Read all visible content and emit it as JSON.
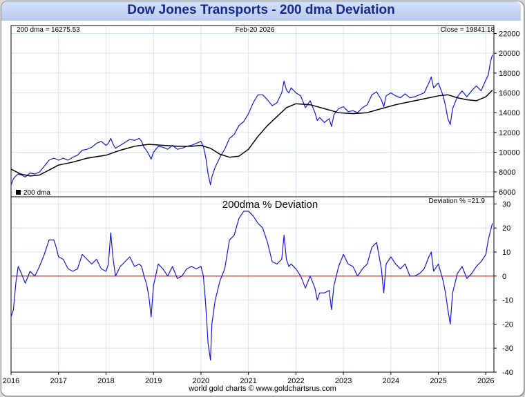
{
  "title": "Dow Jones Transports - 200 dma Deviation",
  "footer": "world gold charts © www.goldchartsrus.com",
  "colors": {
    "price": "#1414e0",
    "dma": "#000000",
    "zero_line": "#e00000",
    "grid": "#d6e2f0"
  },
  "chart_data": [
    {
      "type": "line",
      "panel": "price",
      "header_left": "200 dma =",
      "header_left_value": "16275.53",
      "header_center": "Feb-20  2026",
      "header_right": "Close = 19841.18",
      "legend": "200 dma",
      "ylim": [
        5500,
        22800
      ],
      "yticks": [
        6000,
        8000,
        10000,
        12000,
        14000,
        16000,
        18000,
        20000,
        22000
      ],
      "x_range": [
        2016.0,
        2026.17
      ],
      "series": [
        {
          "name": "Dow Jones Transports",
          "x": [
            2016.0,
            2016.05,
            2016.1,
            2016.15,
            2016.22,
            2016.3,
            2016.4,
            2016.5,
            2016.6,
            2016.7,
            2016.8,
            2016.9,
            2016.95,
            2017.0,
            2017.1,
            2017.2,
            2017.3,
            2017.4,
            2017.5,
            2017.6,
            2017.7,
            2017.8,
            2017.9,
            2018.0,
            2018.05,
            2018.1,
            2018.15,
            2018.2,
            2018.3,
            2018.4,
            2018.5,
            2018.6,
            2018.7,
            2018.75,
            2018.8,
            2018.85,
            2018.9,
            2018.95,
            2019.0,
            2019.1,
            2019.2,
            2019.3,
            2019.4,
            2019.5,
            2019.6,
            2019.7,
            2019.8,
            2019.9,
            2020.0,
            2020.05,
            2020.1,
            2020.15,
            2020.2,
            2020.23,
            2020.3,
            2020.4,
            2020.5,
            2020.6,
            2020.7,
            2020.8,
            2020.9,
            2021.0,
            2021.1,
            2021.2,
            2021.3,
            2021.4,
            2021.5,
            2021.6,
            2021.7,
            2021.75,
            2021.8,
            2021.85,
            2021.9,
            2022.0,
            2022.1,
            2022.2,
            2022.3,
            2022.4,
            2022.45,
            2022.5,
            2022.6,
            2022.7,
            2022.75,
            2022.8,
            2022.9,
            2023.0,
            2023.1,
            2023.2,
            2023.3,
            2023.4,
            2023.5,
            2023.6,
            2023.7,
            2023.8,
            2023.85,
            2023.9,
            2024.0,
            2024.1,
            2024.2,
            2024.3,
            2024.4,
            2024.5,
            2024.6,
            2024.7,
            2024.8,
            2024.85,
            2024.9,
            2025.0,
            2025.1,
            2025.15,
            2025.2,
            2025.25,
            2025.3,
            2025.4,
            2025.5,
            2025.6,
            2025.7,
            2025.8,
            2025.9,
            2026.0,
            2026.05,
            2026.1,
            2026.14
          ],
          "values": [
            6700,
            7300,
            7600,
            7800,
            7700,
            7500,
            7900,
            7800,
            8000,
            8600,
            9200,
            9400,
            9300,
            9200,
            9400,
            9200,
            9500,
            9700,
            10200,
            10300,
            10500,
            10900,
            11100,
            10700,
            10900,
            11400,
            10800,
            10400,
            10700,
            11000,
            11300,
            11200,
            11400,
            11100,
            10500,
            10200,
            9800,
            9300,
            10000,
            10600,
            10500,
            10300,
            10700,
            10300,
            10400,
            10600,
            10700,
            10900,
            11100,
            10600,
            9500,
            7800,
            6700,
            7500,
            8500,
            9500,
            10300,
            11400,
            11800,
            12700,
            13100,
            13900,
            15000,
            15800,
            15800,
            15300,
            14700,
            15000,
            16000,
            17200,
            16300,
            16000,
            16500,
            16000,
            15700,
            14500,
            15200,
            14000,
            13200,
            13500,
            13000,
            13400,
            12600,
            13800,
            14400,
            14600,
            14100,
            14200,
            14000,
            14500,
            14800,
            15800,
            16100,
            15300,
            14600,
            15700,
            16000,
            15700,
            15500,
            15900,
            15500,
            15600,
            15800,
            16000,
            17000,
            17600,
            16500,
            17000,
            15700,
            14700,
            13400,
            12800,
            14400,
            15600,
            16200,
            15600,
            16200,
            16700,
            16200,
            17300,
            17800,
            19200,
            19841
          ]
        },
        {
          "name": "200 dma",
          "x": [
            2016.0,
            2016.2,
            2016.4,
            2016.6,
            2016.8,
            2017.0,
            2017.3,
            2017.6,
            2018.0,
            2018.3,
            2018.6,
            2018.9,
            2019.2,
            2019.5,
            2019.8,
            2020.0,
            2020.2,
            2020.4,
            2020.6,
            2020.8,
            2021.0,
            2021.2,
            2021.4,
            2021.6,
            2021.8,
            2022.0,
            2022.3,
            2022.6,
            2022.9,
            2023.2,
            2023.5,
            2023.8,
            2024.1,
            2024.4,
            2024.7,
            2025.0,
            2025.2,
            2025.4,
            2025.6,
            2025.8,
            2026.0,
            2026.14
          ],
          "values": [
            8300,
            7800,
            7600,
            7700,
            8200,
            8700,
            9000,
            9400,
            9700,
            10200,
            10600,
            10800,
            10700,
            10600,
            10600,
            10700,
            10400,
            9800,
            9500,
            9600,
            10300,
            11600,
            12700,
            13600,
            14500,
            14900,
            14800,
            14400,
            14000,
            13900,
            14000,
            14400,
            14800,
            15100,
            15400,
            15700,
            15800,
            15500,
            15300,
            15200,
            15600,
            16275
          ]
        }
      ]
    },
    {
      "type": "line",
      "panel": "deviation",
      "title": "200dma  %  Deviation",
      "header_right": "Deviation % =21.9",
      "ylim": [
        -40,
        33
      ],
      "yticks": [
        -40,
        -30,
        -20,
        -10,
        0,
        10,
        20,
        30
      ],
      "xticks": [
        "2016",
        "2017",
        "2018",
        "2019",
        "2020",
        "2021",
        "2022",
        "2023",
        "2024",
        "2025",
        "2026"
      ],
      "xtick_values": [
        2016,
        2017,
        2018,
        2019,
        2020,
        2021,
        2022,
        2023,
        2024,
        2025,
        2026
      ],
      "x_range": [
        2016.0,
        2026.17
      ],
      "series": [
        {
          "name": "Deviation %",
          "x": [
            2016.0,
            2016.05,
            2016.1,
            2016.15,
            2016.22,
            2016.3,
            2016.4,
            2016.5,
            2016.6,
            2016.7,
            2016.8,
            2016.9,
            2016.95,
            2017.0,
            2017.1,
            2017.2,
            2017.3,
            2017.4,
            2017.5,
            2017.6,
            2017.7,
            2017.8,
            2017.9,
            2018.0,
            2018.05,
            2018.1,
            2018.15,
            2018.2,
            2018.3,
            2018.4,
            2018.5,
            2018.6,
            2018.7,
            2018.75,
            2018.8,
            2018.85,
            2018.9,
            2018.95,
            2019.0,
            2019.1,
            2019.2,
            2019.3,
            2019.4,
            2019.5,
            2019.6,
            2019.7,
            2019.8,
            2019.9,
            2020.0,
            2020.05,
            2020.1,
            2020.15,
            2020.2,
            2020.23,
            2020.3,
            2020.4,
            2020.5,
            2020.6,
            2020.7,
            2020.8,
            2020.9,
            2021.0,
            2021.1,
            2021.2,
            2021.3,
            2021.4,
            2021.5,
            2021.6,
            2021.7,
            2021.75,
            2021.8,
            2021.85,
            2021.9,
            2022.0,
            2022.1,
            2022.2,
            2022.3,
            2022.4,
            2022.45,
            2022.5,
            2022.6,
            2022.7,
            2022.75,
            2022.8,
            2022.9,
            2023.0,
            2023.1,
            2023.2,
            2023.3,
            2023.4,
            2023.5,
            2023.6,
            2023.7,
            2023.8,
            2023.85,
            2023.9,
            2024.0,
            2024.1,
            2024.2,
            2024.3,
            2024.4,
            2024.5,
            2024.6,
            2024.7,
            2024.8,
            2024.85,
            2024.9,
            2025.0,
            2025.1,
            2025.15,
            2025.2,
            2025.25,
            2025.3,
            2025.4,
            2025.5,
            2025.6,
            2025.7,
            2025.8,
            2025.9,
            2026.0,
            2026.05,
            2026.1,
            2026.14
          ],
          "values": [
            -17,
            -14,
            -3,
            4,
            1,
            -3,
            2,
            0,
            4,
            9,
            15,
            15,
            12,
            8,
            7,
            3,
            2,
            3,
            9,
            7,
            5,
            7,
            3,
            2,
            5,
            18,
            7,
            0,
            4,
            6,
            8,
            4,
            5,
            4,
            0,
            -3,
            -8,
            -17,
            -4,
            5,
            3,
            0,
            4,
            -1,
            0,
            3,
            4,
            3,
            4,
            0,
            -12,
            -28,
            -35,
            -20,
            -10,
            -2,
            3,
            15,
            17,
            24,
            27,
            27,
            25,
            22,
            20,
            14,
            6,
            5,
            7,
            17,
            7,
            4,
            5,
            3,
            0,
            -5,
            0,
            -5,
            -10,
            -7,
            -7,
            -6,
            -14,
            -4,
            4,
            9,
            5,
            4,
            0,
            3,
            5,
            12,
            14,
            3,
            -7,
            5,
            8,
            5,
            3,
            5,
            0,
            0,
            1,
            3,
            8,
            10,
            2,
            5,
            -2,
            -7,
            -14,
            -20,
            -7,
            1,
            4,
            -1,
            1,
            4,
            6,
            9,
            15,
            19,
            22
          ]
        }
      ]
    }
  ]
}
